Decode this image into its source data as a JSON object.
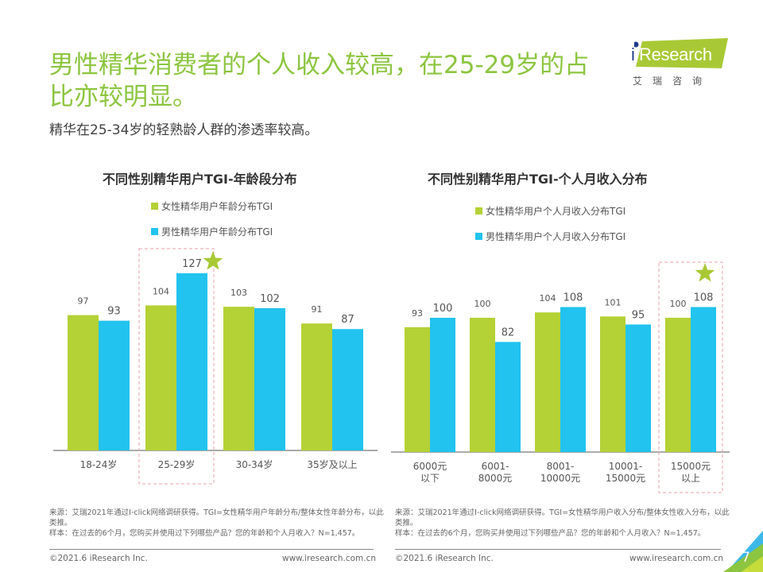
{
  "header": {
    "title": "男性精华消费者的个人收入较高，在25-29岁的占比亦较明显。",
    "subtitle": "精华在25-34岁的轻熟龄人群的渗透率较高。"
  },
  "logo": {
    "brand": "Research",
    "brand_i": "i",
    "cn": "艾瑞咨询"
  },
  "colors": {
    "female": "#b4d136",
    "male": "#22c3ee",
    "title_green": "#8cc540",
    "highlight_box": "#e8a0a8",
    "star": "#a8c935"
  },
  "chart_data": [
    {
      "type": "bar",
      "title": "不同性别精华用户TGI-年龄段分布",
      "categories": [
        "18-24岁",
        "25-29岁",
        "30-34岁",
        "35岁及以上"
      ],
      "series": [
        {
          "name": "女性精华用户年龄分布TGI",
          "values": [
            97,
            104,
            103,
            91
          ]
        },
        {
          "name": "男性精华用户年龄分布TGI",
          "values": [
            93,
            127,
            102,
            87
          ]
        }
      ],
      "highlight_category": "25-29岁",
      "xlabel": "",
      "ylabel": "",
      "ylim": [
        0,
        130
      ],
      "grid": false,
      "legend": "top-center"
    },
    {
      "type": "bar",
      "title": "不同性别精华用户TGI-个人月收入分布",
      "categories": [
        "6000元\n以下",
        "6001-\n8000元",
        "8001-\n10000元",
        "10001-\n15000元",
        "15000元\n以上"
      ],
      "series": [
        {
          "name": "女性精华用户个人月收入分布TGI",
          "values": [
            93,
            100,
            104,
            101,
            100
          ]
        },
        {
          "name": "男性精华用户个人月收入分布TGI",
          "values": [
            100,
            82,
            108,
            95,
            108
          ]
        }
      ],
      "highlight_category": "15000元\n以上",
      "xlabel": "",
      "ylabel": "",
      "ylim": [
        0,
        130
      ],
      "grid": false,
      "legend": "top-center"
    }
  ],
  "footnotes": {
    "left": {
      "source": "来源：艾瑞2021年通过I-click网络调研获得。TGI=女性精华用户年龄分布/整体女性年龄分布，以此类推。",
      "sample": "样本：在过去的6个月，您购买并使用过下列哪些产品？您的年龄和个人月收入？N=1,457。"
    },
    "right": {
      "source": "来源：艾瑞2021年通过I-click网络调研获得。TGI=女性精华用户收入分布/整体女性收入分布，以此类推。",
      "sample": "样本：在过去的6个月，您购买并使用过下列哪些产品？您的年龄和个人月收入？N=1,457。"
    }
  },
  "footer": {
    "copyright": "©2021.6 iResearch Inc.",
    "website": "www.iresearch.com.cn",
    "page_number": "7"
  }
}
